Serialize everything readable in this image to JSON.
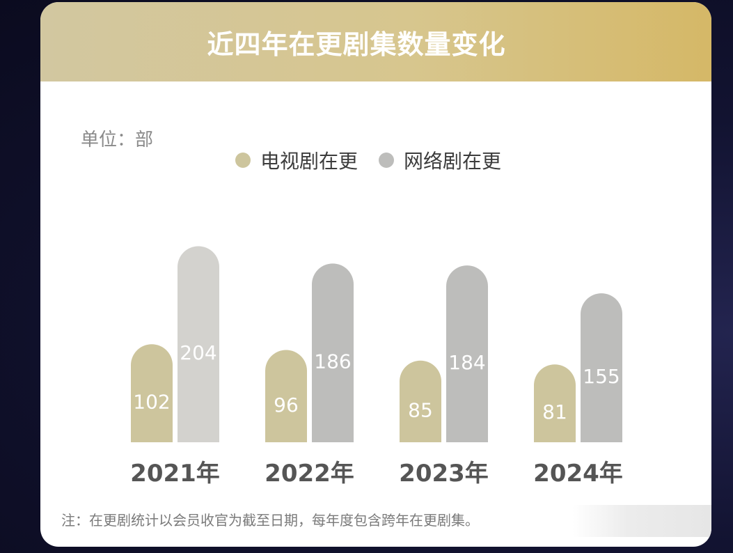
{
  "header": {
    "title": "近四年在更剧集数量变化"
  },
  "unit_label": "单位：部",
  "note": "注：在更剧统计以会员收官为截至日期，每年度包含跨年在更剧集。",
  "colors": {
    "tv": "#cdc59d",
    "web": "#bdbdbb",
    "web_first": "#d3d2ce",
    "year_text": "#555555",
    "value_text": "#ffffff"
  },
  "chart_data": {
    "type": "bar",
    "categories": [
      "2021年",
      "2022年",
      "2023年",
      "2024年"
    ],
    "series": [
      {
        "name": "电视剧在更",
        "values": [
          102,
          96,
          85,
          81
        ]
      },
      {
        "name": "网络剧在更",
        "values": [
          204,
          186,
          184,
          155
        ]
      }
    ],
    "title": "近四年在更剧集数量变化",
    "ylabel": "单位：部",
    "legend": "top-center",
    "grid": false
  }
}
